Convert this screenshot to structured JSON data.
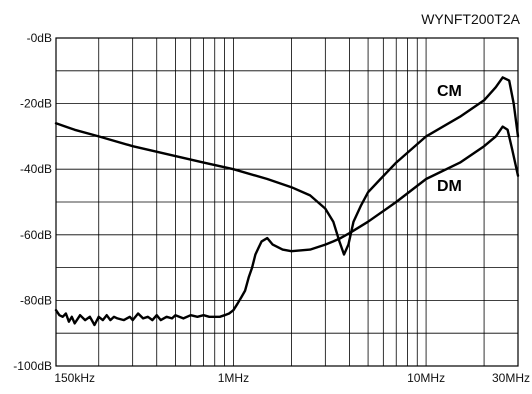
{
  "chart_data": {
    "type": "line",
    "title": "WYNFT200T2A",
    "xlabel": "",
    "ylabel": "",
    "x_scale": "log",
    "xlim": [
      0.15,
      30
    ],
    "ylim": [
      -100,
      0
    ],
    "grid": true,
    "x_ticks": [
      {
        "value": 0.15,
        "label": "150kHz"
      },
      {
        "value": 1,
        "label": "1MHz"
      },
      {
        "value": 10,
        "label": "10MHz"
      },
      {
        "value": 30,
        "label": "30MHz"
      }
    ],
    "y_ticks": [
      {
        "value": 0,
        "label": "-0dB"
      },
      {
        "value": -20,
        "label": "-20dB"
      },
      {
        "value": -40,
        "label": "-40dB"
      },
      {
        "value": -60,
        "label": "-60dB"
      },
      {
        "value": -80,
        "label": "-80dB"
      },
      {
        "value": -100,
        "label": "-100dB"
      }
    ],
    "series": [
      {
        "name": "CM",
        "x": [
          0.12,
          0.15,
          0.2,
          0.3,
          0.5,
          0.7,
          1.0,
          1.5,
          2.0,
          2.5,
          3.0,
          3.3,
          3.55,
          3.75,
          3.95,
          4.2,
          4.6,
          5.0,
          5.8,
          7.0,
          10.0,
          15.0,
          20.0,
          23.0,
          25.0,
          27.0,
          28.5,
          30.0
        ],
        "values": [
          -26,
          -28,
          -30,
          -33,
          -36,
          -38,
          -40,
          -43,
          -45.5,
          -48,
          -52,
          -56,
          -62,
          -66,
          -63,
          -56,
          -51,
          -47,
          -43,
          -38,
          -30,
          -24,
          -19,
          -15,
          -12,
          -13,
          -20,
          -30
        ]
      },
      {
        "name": "DM",
        "x": [
          0.12,
          0.125,
          0.13,
          0.135,
          0.14,
          0.145,
          0.15,
          0.16,
          0.17,
          0.18,
          0.19,
          0.2,
          0.21,
          0.22,
          0.23,
          0.24,
          0.25,
          0.27,
          0.29,
          0.3,
          0.32,
          0.34,
          0.36,
          0.38,
          0.4,
          0.42,
          0.45,
          0.48,
          0.5,
          0.55,
          0.6,
          0.65,
          0.7,
          0.75,
          0.8,
          0.85,
          0.9,
          0.95,
          1.0,
          1.05,
          1.1,
          1.15,
          1.2,
          1.25,
          1.3,
          1.35,
          1.4,
          1.5,
          1.6,
          1.8,
          2.0,
          2.5,
          3.0,
          3.3,
          3.6,
          4.0,
          5.0,
          7.0,
          10.0,
          15.0,
          20.0,
          23.0,
          25.0,
          26.5,
          28.0,
          30.0
        ],
        "values": [
          -83,
          -84.5,
          -85,
          -84,
          -86.5,
          -85,
          -87,
          -84.5,
          -86,
          -85,
          -87.5,
          -85,
          -86,
          -84.5,
          -86,
          -85,
          -85.5,
          -86,
          -85,
          -86,
          -84,
          -85.5,
          -85,
          -86,
          -84.5,
          -86,
          -85,
          -85.5,
          -84.5,
          -85.5,
          -84.5,
          -85,
          -84.5,
          -85,
          -85,
          -85,
          -84.5,
          -84,
          -83,
          -81,
          -79,
          -77,
          -73,
          -70,
          -66,
          -64,
          -62,
          -61,
          -63,
          -64.5,
          -65,
          -64.5,
          -63,
          -62,
          -61,
          -59.5,
          -56,
          -50,
          -43,
          -38,
          -33,
          -30,
          -27,
          -28,
          -34,
          -42
        ]
      }
    ]
  }
}
